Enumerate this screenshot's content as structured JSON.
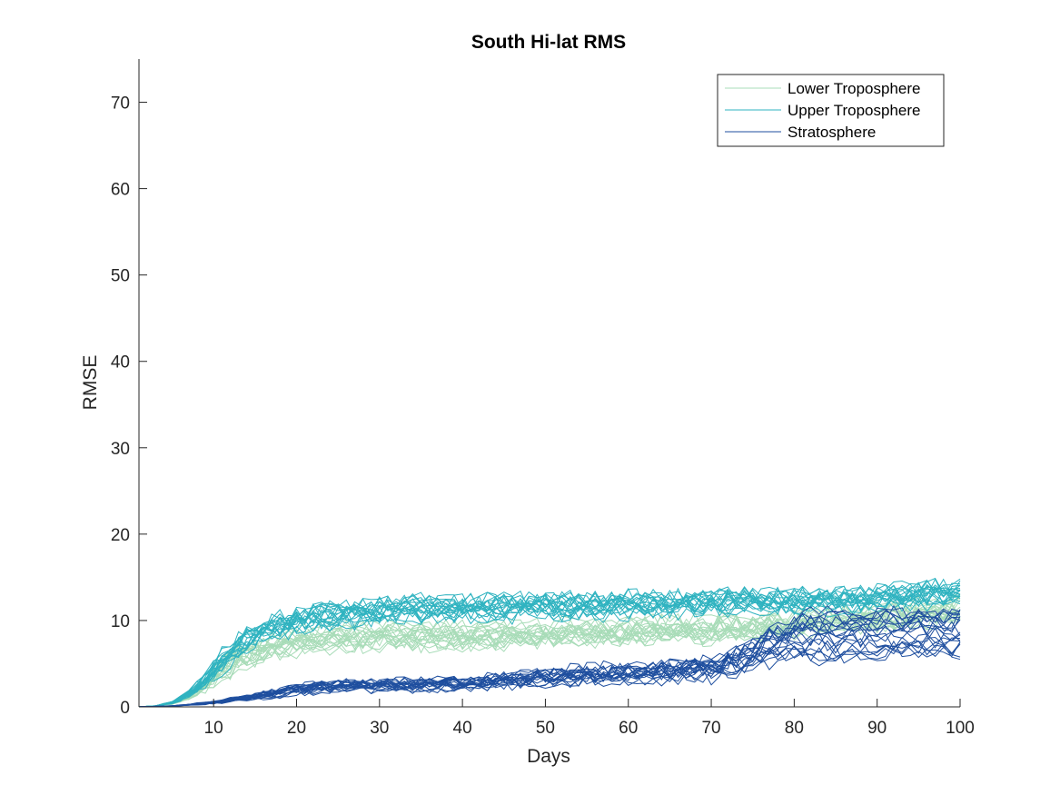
{
  "chart_data": {
    "type": "line",
    "title": "South Hi-lat RMS",
    "xlabel": "Days",
    "ylabel": "RMSE",
    "xlim": [
      1,
      100
    ],
    "ylim": [
      0,
      75
    ],
    "xticks": [
      10,
      20,
      30,
      40,
      50,
      60,
      70,
      80,
      90,
      100
    ],
    "yticks": [
      0,
      10,
      20,
      30,
      40,
      50,
      60,
      70
    ],
    "grid": false,
    "legend_position": "top-right",
    "legend": [
      "Lower Troposphere",
      "Upper Troposphere",
      "Stratosphere"
    ],
    "colors": {
      "Lower Troposphere": "#a8dcb8",
      "Upper Troposphere": "#2fb3c0",
      "Stratosphere": "#1f4f9f"
    },
    "series_groups": [
      {
        "name": "Lower Troposphere",
        "color": "#a8dcb8",
        "member_count": 20,
        "ensemble_mean": {
          "x": [
            1,
            3,
            5,
            7,
            9,
            11,
            13,
            15,
            20,
            25,
            30,
            35,
            40,
            45,
            50,
            55,
            60,
            65,
            70,
            75,
            80,
            85,
            90,
            95,
            100
          ],
          "y": [
            0,
            0.1,
            0.4,
            1.2,
            2.6,
            4.3,
            5.8,
            6.6,
            7.6,
            8.1,
            8.3,
            8.3,
            8.2,
            8.4,
            8.5,
            8.6,
            8.8,
            8.9,
            9.0,
            9.2,
            9.6,
            10.0,
            10.4,
            10.9,
            11.4
          ]
        }
      },
      {
        "name": "Upper Troposphere",
        "color": "#2fb3c0",
        "member_count": 20,
        "ensemble_mean": {
          "x": [
            1,
            3,
            5,
            7,
            9,
            11,
            13,
            15,
            20,
            25,
            30,
            35,
            40,
            45,
            50,
            55,
            60,
            65,
            70,
            75,
            80,
            85,
            90,
            95,
            100
          ],
          "y": [
            0,
            0.1,
            0.5,
            1.4,
            2.9,
            5.0,
            7.0,
            8.3,
            9.8,
            10.5,
            11.0,
            11.2,
            11.3,
            11.4,
            11.5,
            11.6,
            11.7,
            11.8,
            11.9,
            12.0,
            12.1,
            12.3,
            12.5,
            12.8,
            13.1
          ]
        }
      },
      {
        "name": "Stratosphere",
        "color": "#1f4f9f",
        "member_count": 20,
        "ensemble_mean": {
          "x": [
            1,
            5,
            10,
            15,
            20,
            25,
            30,
            35,
            40,
            45,
            50,
            55,
            60,
            65,
            70,
            73,
            76,
            80,
            85,
            90,
            95,
            100
          ],
          "y": [
            0,
            0.1,
            0.5,
            1.2,
            2.0,
            2.4,
            2.5,
            2.5,
            2.6,
            3.1,
            3.4,
            3.7,
            3.9,
            4.1,
            4.3,
            5.2,
            6.6,
            7.9,
            8.2,
            8.4,
            8.4,
            8.5
          ]
        }
      }
    ]
  }
}
